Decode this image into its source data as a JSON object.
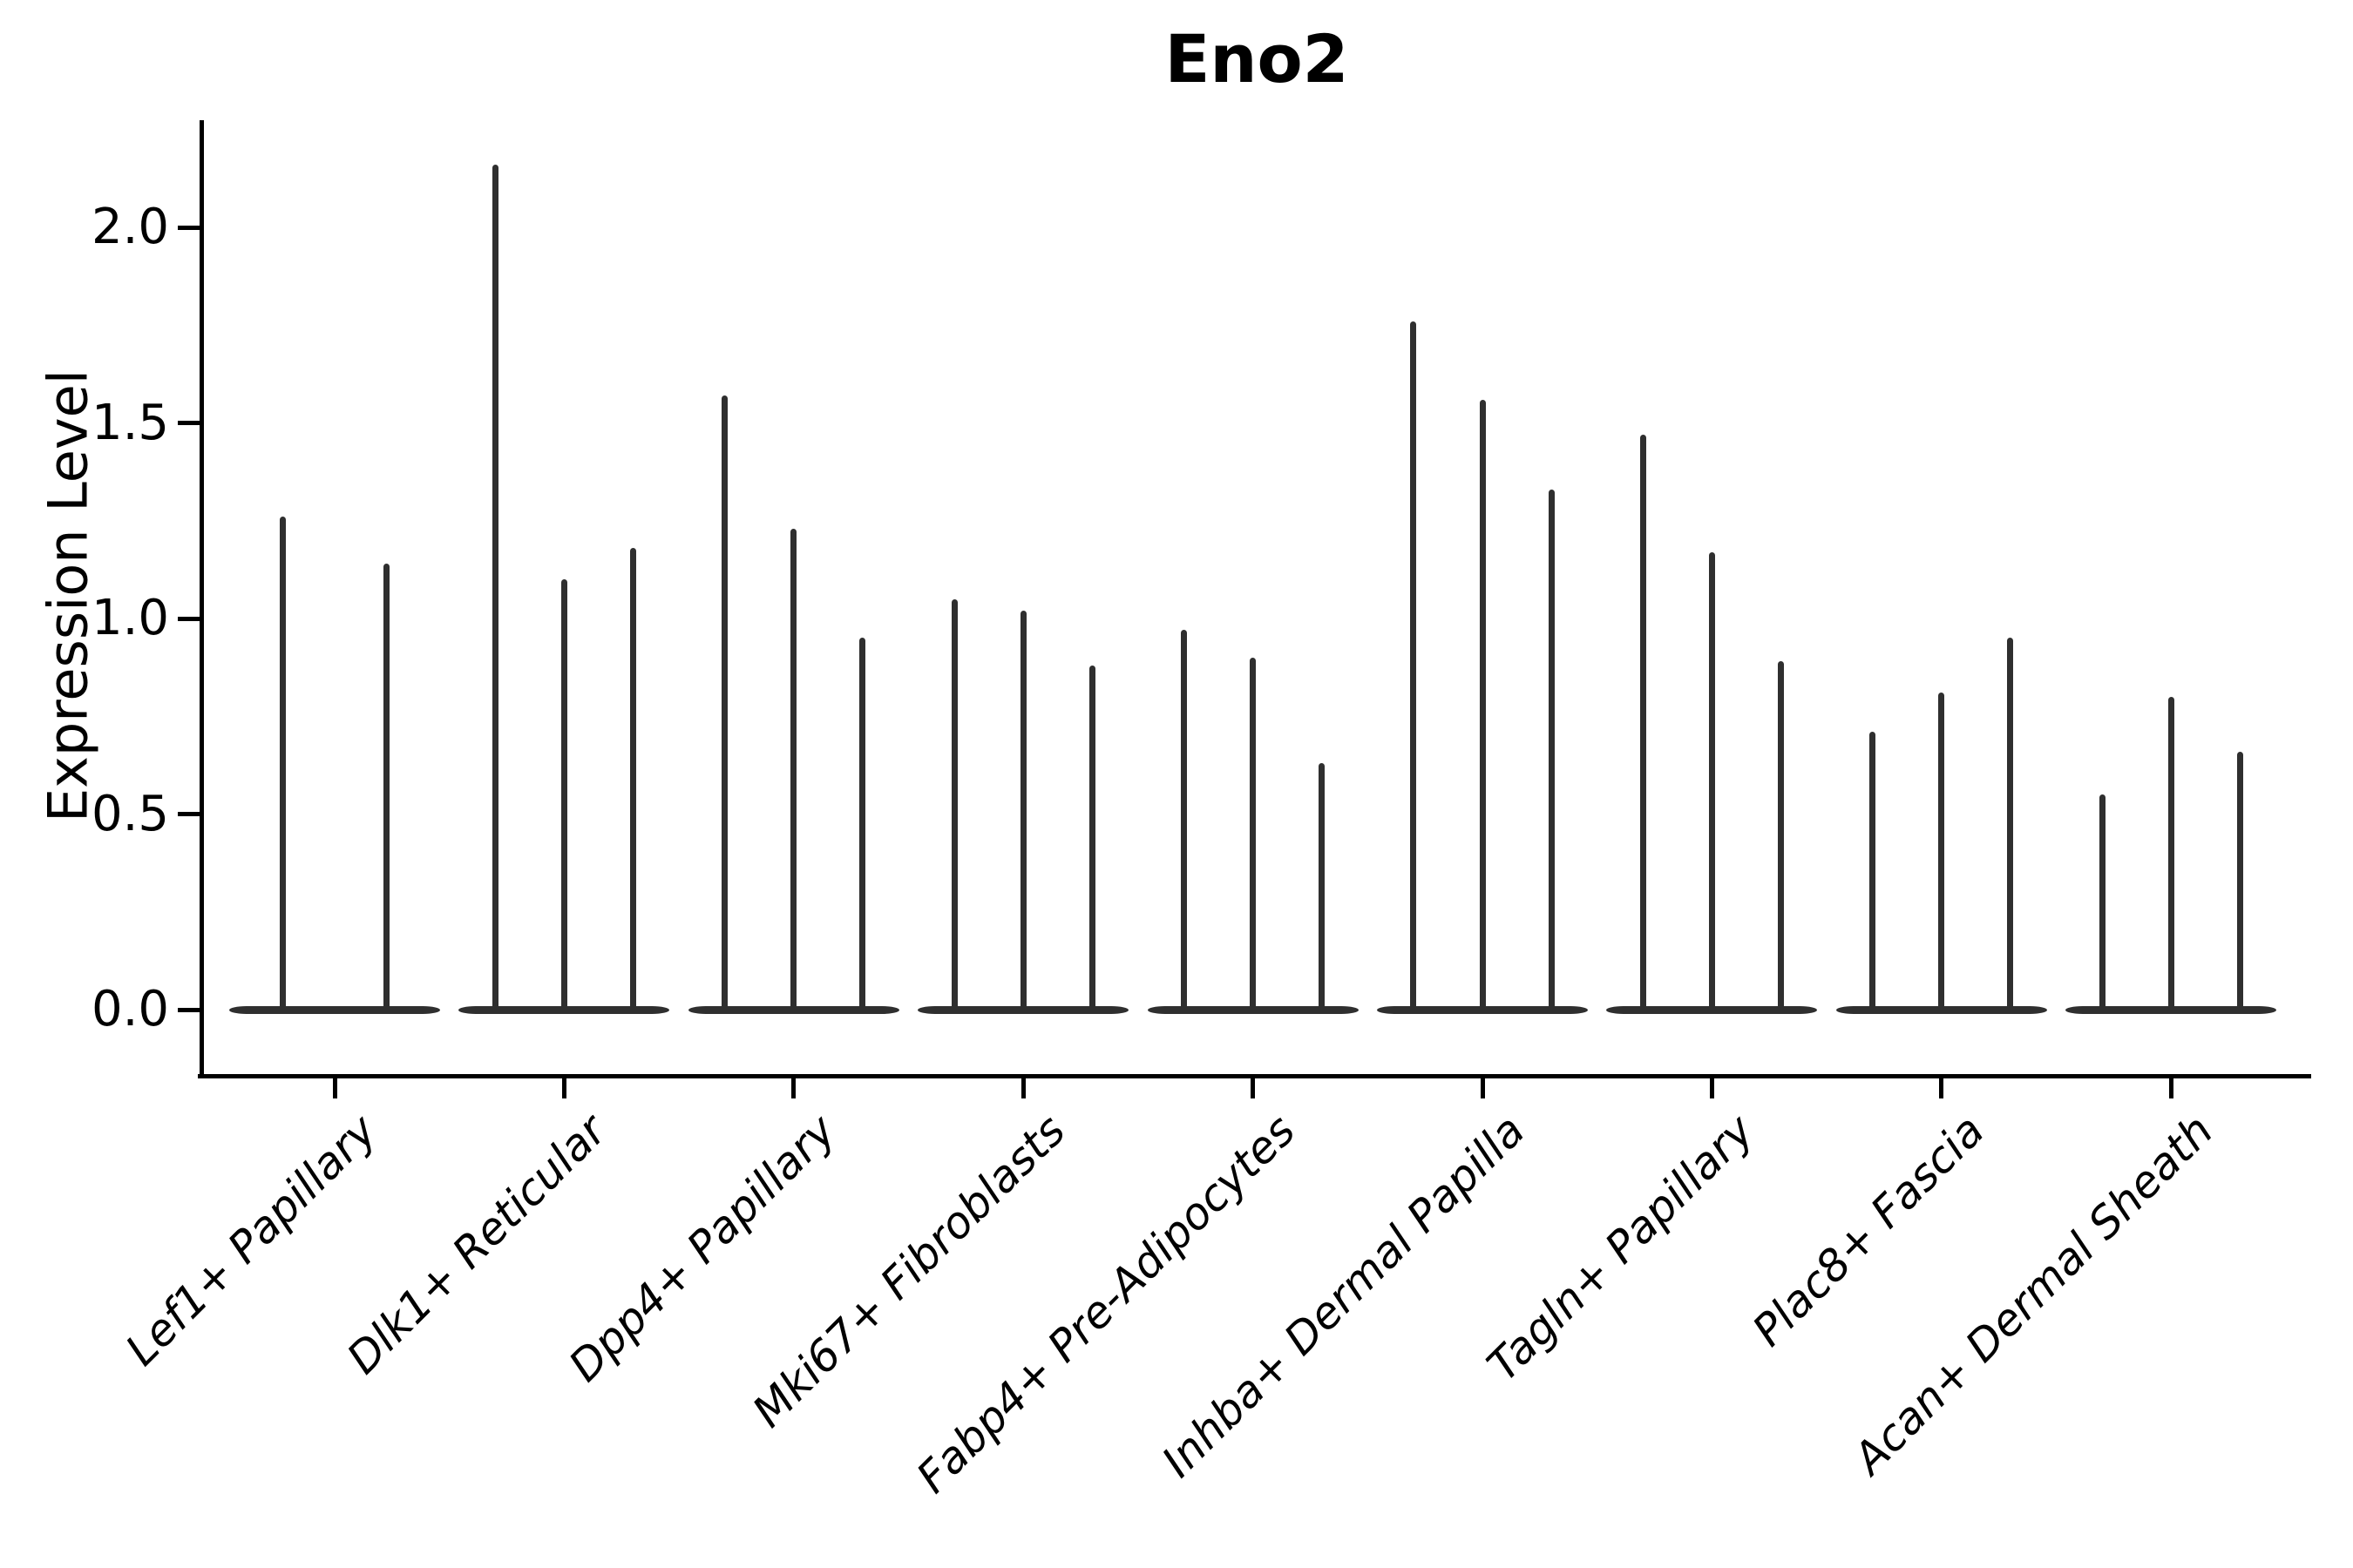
{
  "figure": {
    "title": "Eno2",
    "background_color": "#ffffff",
    "ink_color": "#2f2f2f",
    "axis_color": "#000000"
  },
  "chart_data": {
    "type": "violin",
    "title": "Eno2",
    "xlabel": "",
    "ylabel": "Expression Level",
    "ylim": [
      0,
      2.28
    ],
    "yticks": [
      "0.0",
      "0.5",
      "1.0",
      "1.5",
      "2.0"
    ],
    "grid": false,
    "legend": false,
    "note": "Sparse-expression violins: each violin collapses to a flat lens at 0 with a thin spike up to the group's maximum expression value; most categories contain 3 dodged sub-violins, Lef1+ Papillary contains 2.",
    "categories": [
      {
        "label": "Lef1+ Papillary",
        "violins": [
          {
            "offset": -0.225,
            "max": 1.26
          },
          {
            "offset": 0.225,
            "max": 1.14
          }
        ]
      },
      {
        "label": "Dlk1+ Reticular",
        "violins": [
          {
            "offset": -0.3,
            "max": 2.16
          },
          {
            "offset": 0,
            "max": 1.1
          },
          {
            "offset": 0.3,
            "max": 1.18
          }
        ]
      },
      {
        "label": "Dpp4+ Papillary",
        "violins": [
          {
            "offset": -0.3,
            "max": 1.57
          },
          {
            "offset": 0,
            "max": 1.23
          },
          {
            "offset": 0.3,
            "max": 0.95
          }
        ]
      },
      {
        "label": "Mki67+ Fibroblasts",
        "violins": [
          {
            "offset": -0.3,
            "max": 1.05
          },
          {
            "offset": 0,
            "max": 1.02
          },
          {
            "offset": 0.3,
            "max": 0.88
          }
        ]
      },
      {
        "label": "Fabp4+ Pre-Adipocytes",
        "violins": [
          {
            "offset": -0.3,
            "max": 0.97
          },
          {
            "offset": 0,
            "max": 0.9
          },
          {
            "offset": 0.3,
            "max": 0.63
          }
        ]
      },
      {
        "label": "Inhba+ Dermal Papilla",
        "violins": [
          {
            "offset": -0.3,
            "max": 1.76
          },
          {
            "offset": 0,
            "max": 1.56
          },
          {
            "offset": 0.3,
            "max": 1.33
          }
        ]
      },
      {
        "label": "Tagln+ Papillary",
        "violins": [
          {
            "offset": -0.3,
            "max": 1.47
          },
          {
            "offset": 0,
            "max": 1.17
          },
          {
            "offset": 0.3,
            "max": 0.89
          }
        ]
      },
      {
        "label": "Plac8+ Fascia",
        "violins": [
          {
            "offset": -0.3,
            "max": 0.71
          },
          {
            "offset": 0,
            "max": 0.81
          },
          {
            "offset": 0.3,
            "max": 0.95
          }
        ]
      },
      {
        "label": "Acan+ Dermal Sheath",
        "violins": [
          {
            "offset": -0.3,
            "max": 0.55
          },
          {
            "offset": 0,
            "max": 0.8
          },
          {
            "offset": 0.3,
            "max": 0.66
          }
        ]
      }
    ]
  }
}
